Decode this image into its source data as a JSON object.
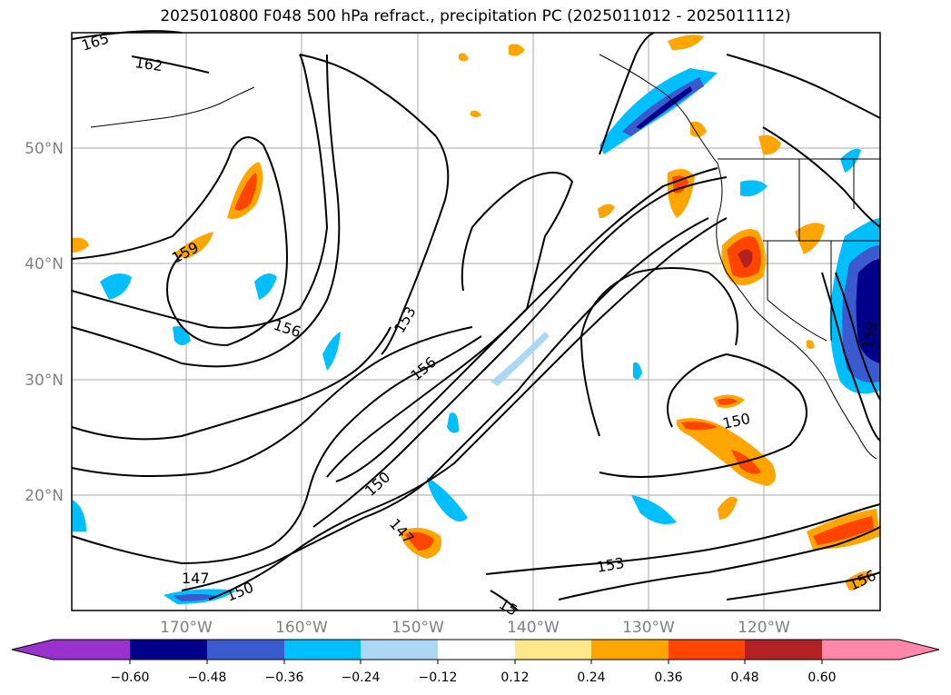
{
  "title": "2025010800 F048 500 hPa refract., precipitation PC (2025011012 - 2025011112)",
  "latitude_labels": [
    "50°N",
    "40°N",
    "30°N",
    "20°N"
  ],
  "longitude_labels": [
    "170°W",
    "160°W",
    "150°W",
    "140°W",
    "130°W",
    "120°W"
  ],
  "contour_labels": [
    "165",
    "162",
    "159",
    "156",
    "153",
    "156",
    "150",
    "147",
    "147",
    "150",
    "153",
    "150",
    "156",
    "159",
    "15"
  ],
  "colorbar": {
    "ticks": [
      "−0.60",
      "−0.48",
      "−0.36",
      "−0.24",
      "−0.12",
      "0.12",
      "0.24",
      "0.36",
      "0.48",
      "0.60"
    ],
    "colors": [
      "#9932cc",
      "#00008b",
      "#3a5bd0",
      "#00bfff",
      "#add8f5",
      "#ffffff",
      "#ffe88a",
      "#ffa500",
      "#ff4500",
      "#b22222",
      "#ff88aa"
    ]
  },
  "colors": {
    "strong_negative": "#00008b",
    "medium_negative": "#3a5bd0",
    "negative": "#00bfff",
    "weak_negative": "#add8f5",
    "weak_positive": "#ffe88a",
    "positive": "#ffa500",
    "strong_positive": "#ff4500",
    "very_strong_positive": "#b22222",
    "grid": "#aaaaaa"
  }
}
